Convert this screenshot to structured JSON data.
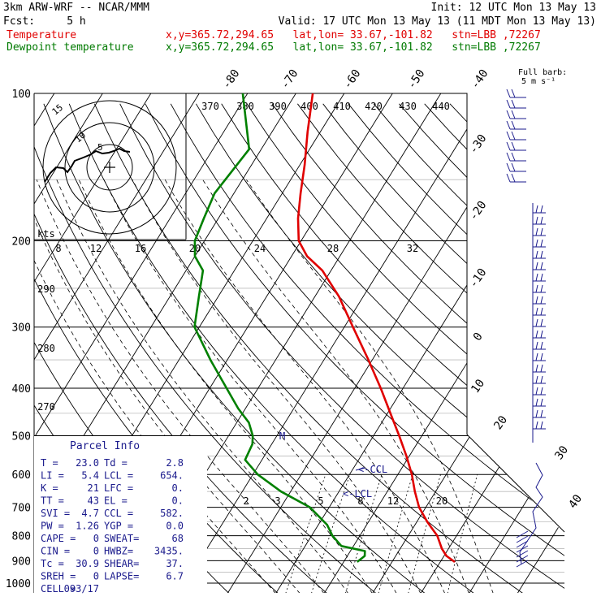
{
  "header": {
    "model": "3km ARW-WRF -- NCAR/MMM",
    "init": "Init: 12 UTC Mon 13 May 13",
    "fcst": "Fcst:     5 h",
    "valid": "Valid: 17 UTC Mon 13 May 13 (11 MDT Mon 13 May 13)",
    "temp_label": "Temperature",
    "dew_label": "Dewpoint temperature",
    "loc_text": "x,y=365.72,294.65   lat,lon= 33.67,-101.82   stn=LBB ,72267"
  },
  "barb_title": "Full barb:",
  "barb_unit": "5 m s⁻¹",
  "hodo_unit": "kts",
  "hodo_rings": [
    "5",
    "10",
    "15"
  ],
  "parcel": {
    "title": "Parcel Info",
    "rows": [
      [
        "T  =",
        "23.0",
        "Td =",
        "2.8"
      ],
      [
        "LI =",
        "5.4",
        "LCL =",
        "654."
      ],
      [
        "K  =",
        "21",
        "LFC =",
        "0."
      ],
      [
        "TT =",
        "43",
        "EL  =",
        "0."
      ],
      [
        "SVI =",
        "4.7",
        "CCL =",
        "582."
      ],
      [
        "PW =",
        "1.26",
        "YGP =",
        "0.0"
      ],
      [
        "CAPE =",
        "0",
        "SWEAT=",
        "68"
      ],
      [
        "CIN =",
        "0",
        "HWBZ=",
        "3435."
      ],
      [
        "Tc =",
        "30.9",
        "SHEAR=",
        "37."
      ],
      [
        "SREH =",
        "0",
        "LAPSE=",
        "6.7"
      ],
      [
        "CELL =",
        "093/17",
        "",
        ""
      ]
    ]
  },
  "markers": {
    "ccl": "CCL",
    "lcl": "LCL",
    "m": "M"
  },
  "colors": {
    "temperature": "#e00000",
    "dewpoint": "#008000",
    "barbs": "#1a1a8c",
    "grid": "#000000"
  },
  "chart_data": {
    "type": "line",
    "pressure_levels": [
      100,
      200,
      300,
      400,
      500,
      600,
      700,
      800,
      900,
      1000
    ],
    "isotherm_labels": [
      "-80",
      "-70",
      "-60",
      "-50",
      "-40",
      "-30",
      "-20",
      "-10",
      "0",
      "10",
      "20",
      "30",
      "40"
    ],
    "theta_labels": [
      "370",
      "380",
      "390",
      "400",
      "410",
      "420",
      "430",
      "440",
      "290",
      "280",
      "270"
    ],
    "mixing_ratio_labels": [
      "8",
      "12",
      "16",
      "20",
      "24",
      "28",
      "32",
      "2",
      "3",
      "5",
      "8",
      "12",
      "20"
    ],
    "series": [
      {
        "name": "Temperature",
        "points_p_t": [
          [
            905,
            23.0
          ],
          [
            880,
            20.5
          ],
          [
            850,
            18.6
          ],
          [
            800,
            16.0
          ],
          [
            750,
            12.2
          ],
          [
            700,
            8.6
          ],
          [
            650,
            5.7
          ],
          [
            600,
            2.9
          ],
          [
            550,
            -0.6
          ],
          [
            500,
            -4.7
          ],
          [
            450,
            -9.4
          ],
          [
            400,
            -14.6
          ],
          [
            350,
            -20.8
          ],
          [
            300,
            -28.2
          ],
          [
            260,
            -35.0
          ],
          [
            230,
            -41.8
          ],
          [
            215,
            -46.8
          ],
          [
            200,
            -50.5
          ],
          [
            180,
            -53.5
          ],
          [
            160,
            -56.2
          ],
          [
            140,
            -59.0
          ],
          [
            120,
            -62.6
          ],
          [
            100,
            -66.5
          ]
        ]
      },
      {
        "name": "Dewpoint temperature",
        "points_p_t": [
          [
            905,
            2.8
          ],
          [
            880,
            3.6
          ],
          [
            860,
            3.0
          ],
          [
            840,
            -2.5
          ],
          [
            800,
            -5.7
          ],
          [
            760,
            -8.2
          ],
          [
            700,
            -14.0
          ],
          [
            650,
            -22.0
          ],
          [
            600,
            -29.0
          ],
          [
            560,
            -33.5
          ],
          [
            520,
            -34.0
          ],
          [
            500,
            -35.0
          ],
          [
            470,
            -37.5
          ],
          [
            440,
            -41.5
          ],
          [
            400,
            -46.5
          ],
          [
            350,
            -53.5
          ],
          [
            300,
            -61.0
          ],
          [
            260,
            -64.0
          ],
          [
            230,
            -66.5
          ],
          [
            215,
            -70.0
          ],
          [
            200,
            -72.0
          ],
          [
            180,
            -73.0
          ],
          [
            160,
            -74.0
          ],
          [
            130,
            -72.5
          ],
          [
            100,
            -81.0
          ]
        ]
      }
    ]
  }
}
